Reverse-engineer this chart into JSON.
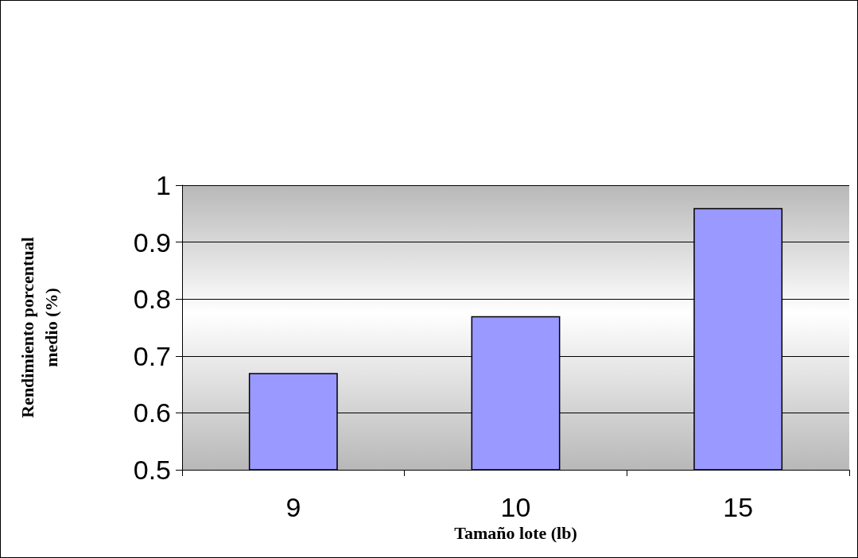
{
  "chart_data": {
    "type": "bar",
    "xlabel": "Tamaño lote (lb)",
    "ylabel": "Rendimiento porcentual\nmedio (%)",
    "categories": [
      "9",
      "10",
      "15"
    ],
    "values": [
      0.67,
      0.77,
      0.96
    ],
    "color": "#9999ff",
    "ylim": [
      0.5,
      1
    ],
    "yticks": [
      0.5,
      0.6,
      0.7,
      0.8,
      0.9,
      1
    ],
    "grid": "y"
  }
}
